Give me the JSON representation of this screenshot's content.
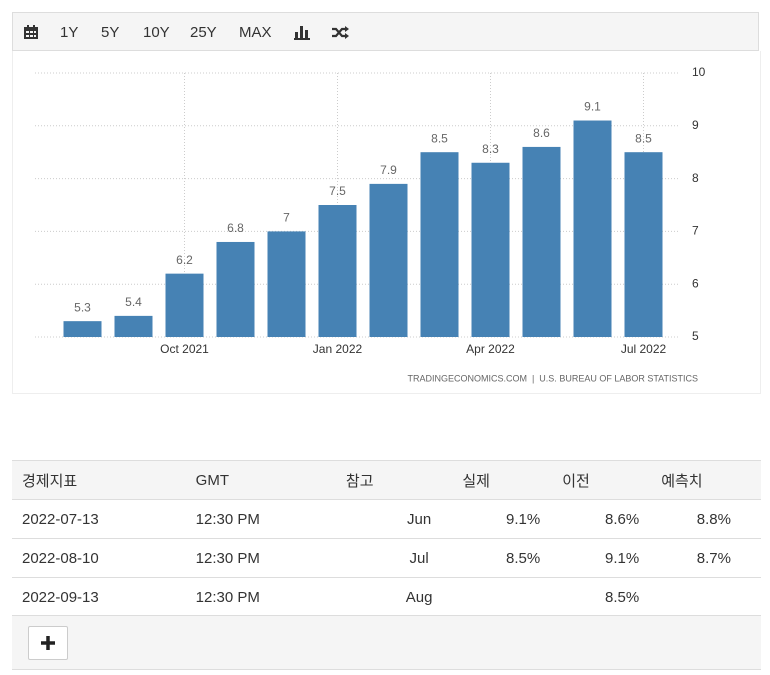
{
  "toolbar": {
    "ranges": [
      "1Y",
      "5Y",
      "10Y",
      "25Y",
      "MAX"
    ]
  },
  "chart_data": {
    "type": "bar",
    "categories": [
      null,
      null,
      "Oct 2021",
      null,
      null,
      "Jan 2022",
      null,
      null,
      "Apr 2022",
      null,
      null,
      "Jul 2022"
    ],
    "values": [
      5.3,
      5.4,
      6.2,
      6.8,
      7,
      7.5,
      7.9,
      8.5,
      8.3,
      8.6,
      9.1,
      8.5
    ],
    "color": "#4682b4",
    "ylim": [
      5,
      10
    ],
    "yticks": [
      5,
      6,
      7,
      8,
      9,
      10
    ],
    "grid": true,
    "source": "TRADINGECONOMICS.COM  |  U.S. BUREAU OF LABOR STATISTICS"
  },
  "table": {
    "header": [
      "경제지표",
      "GMT",
      "참고",
      "실제",
      "이전",
      "예측치"
    ],
    "rows": [
      [
        "2022-07-13",
        "12:30 PM",
        "Jun",
        "9.1%",
        "8.6%",
        "8.8%"
      ],
      [
        "2022-08-10",
        "12:30 PM",
        "Jul",
        "8.5%",
        "9.1%",
        "8.7%"
      ],
      [
        "2022-09-13",
        "12:30 PM",
        "Aug",
        null,
        "8.5%",
        null
      ]
    ]
  }
}
